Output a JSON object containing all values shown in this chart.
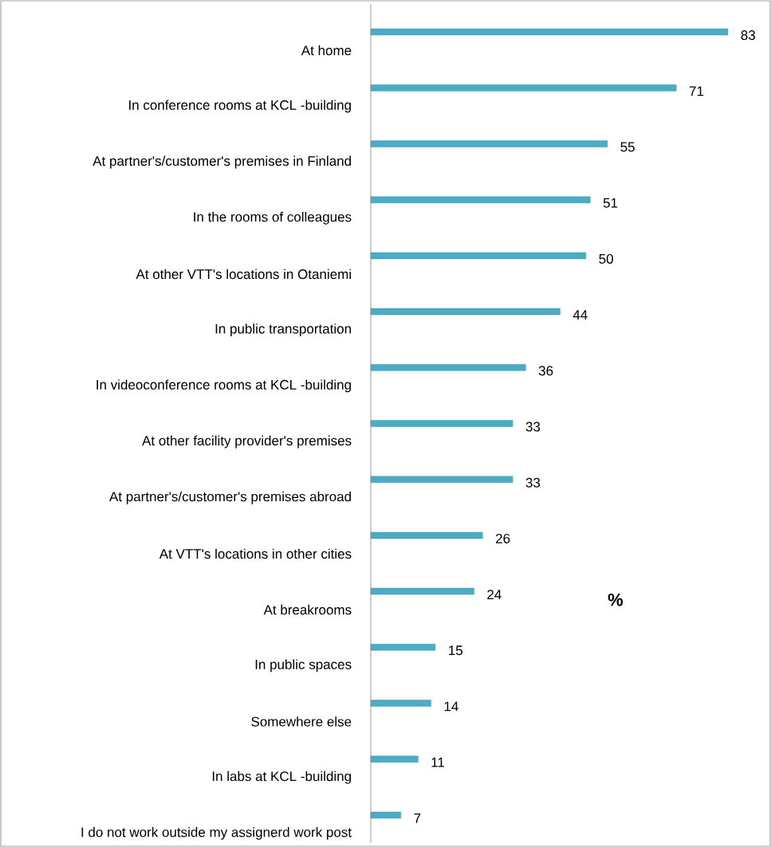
{
  "chart_data": {
    "type": "bar",
    "orientation": "horizontal",
    "data_labels": true,
    "color": "#4bacc6",
    "categories": [
      "At home",
      "In conference rooms at KCL -building",
      "At partner's/customer's premises in Finland",
      "In the rooms of colleagues",
      "At other VTT's locations in Otaniemi",
      "In public transportation",
      "In videoconference rooms at KCL -building",
      "At other facility provider's premises",
      "At partner's/customer's premises abroad",
      "At VTT's locations in other cities",
      "At breakrooms",
      "In public spaces",
      "Somewhere else",
      "In labs at KCL -building",
      "I do not work outside my assignerd work post"
    ],
    "values": [
      83,
      71,
      55,
      51,
      50,
      44,
      36,
      33,
      33,
      26,
      24,
      15,
      14,
      11,
      7
    ],
    "annotations": [
      "%"
    ]
  }
}
